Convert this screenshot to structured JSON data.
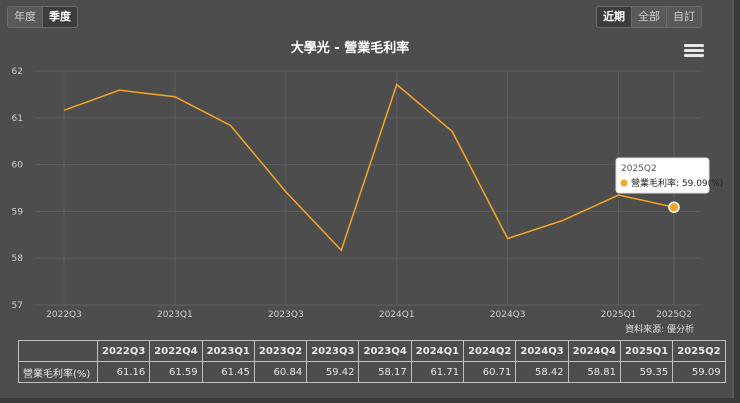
{
  "period_toggle": [
    "年度",
    "季度"
  ],
  "period_active": 1,
  "range_toggle": [
    "近期",
    "全部",
    "自訂"
  ],
  "range_active": 0,
  "source_label": "資料來源: 優分析",
  "tooltip": {
    "title": "2025Q2",
    "text": "營業毛利率: 59.09(%)"
  },
  "colors": {
    "line": "#f5a623",
    "background": "#4d4d4d",
    "grid": "#5e5e5e"
  },
  "icons": {
    "menu": "hamburger-menu-icon"
  },
  "chart_data": {
    "type": "line",
    "title": "大學光 - 營業毛利率",
    "categories": [
      "2022Q3",
      "2022Q4",
      "2023Q1",
      "2023Q2",
      "2023Q3",
      "2023Q4",
      "2024Q1",
      "2024Q2",
      "2024Q3",
      "2024Q4",
      "2025Q1",
      "2025Q2"
    ],
    "x_tick_labels": [
      "2022Q3",
      "2023Q1",
      "2023Q3",
      "2024Q1",
      "2024Q3",
      "2025Q1",
      "2025Q2"
    ],
    "series": [
      {
        "name": "營業毛利率(%)",
        "values": [
          61.16,
          61.59,
          61.45,
          60.84,
          59.42,
          58.17,
          61.71,
          60.71,
          58.42,
          58.81,
          59.35,
          59.09
        ]
      }
    ],
    "ylim": [
      57,
      62
    ],
    "yticks": [
      57,
      58,
      59,
      60,
      61,
      62
    ],
    "grid": true
  },
  "table": {
    "row_label": "營業毛利率(%)",
    "headers": [
      "2022Q3",
      "2022Q4",
      "2023Q1",
      "2023Q2",
      "2023Q3",
      "2023Q4",
      "2024Q1",
      "2024Q2",
      "2024Q3",
      "2024Q4",
      "2025Q1",
      "2025Q2"
    ],
    "values": [
      "61.16",
      "61.59",
      "61.45",
      "60.84",
      "59.42",
      "58.17",
      "61.71",
      "60.71",
      "58.42",
      "58.81",
      "59.35",
      "59.09"
    ]
  }
}
